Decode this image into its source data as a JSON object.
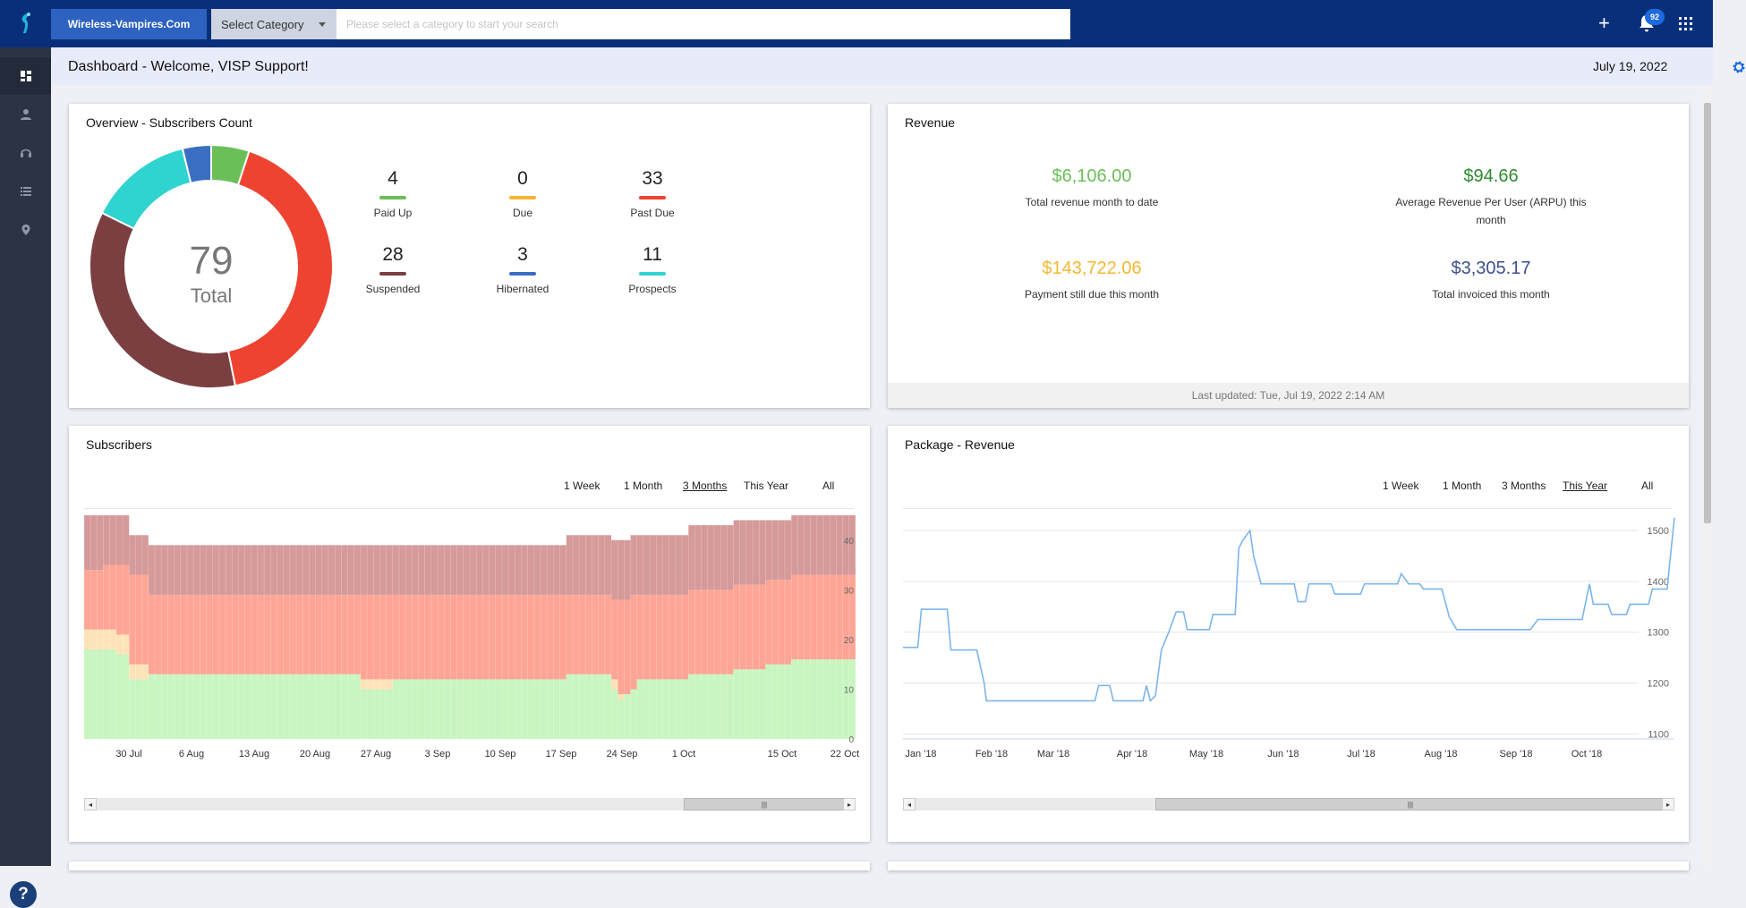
{
  "topbar": {
    "org_button": "Wireless-Vampires.Com",
    "category_select": "Select Category",
    "search_placeholder": "Please select a category to start your search",
    "notification_count": "92"
  },
  "sidebar": {
    "items": [
      {
        "icon": "dashboard-icon",
        "active": true
      },
      {
        "icon": "person-icon",
        "active": false
      },
      {
        "icon": "headset-icon",
        "active": false
      },
      {
        "icon": "list-icon",
        "active": false
      },
      {
        "icon": "location-pin-icon",
        "active": false
      }
    ],
    "help": "?"
  },
  "header": {
    "title": "Dashboard - Welcome, VISP Support!",
    "date": "July 19, 2022"
  },
  "overview": {
    "title": "Overview - Subscribers Count",
    "total_value": "79",
    "total_label": "Total",
    "stats": [
      {
        "value": "4",
        "label": "Paid Up",
        "color": "#6bbf59"
      },
      {
        "value": "0",
        "label": "Due",
        "color": "#f5b731"
      },
      {
        "value": "33",
        "label": "Past Due",
        "color": "#ef4332"
      },
      {
        "value": "28",
        "label": "Suspended",
        "color": "#7b3f42"
      },
      {
        "value": "3",
        "label": "Hibernated",
        "color": "#3a6ec2"
      },
      {
        "value": "11",
        "label": "Prospects",
        "color": "#2fd3d0"
      }
    ]
  },
  "revenue": {
    "title": "Revenue",
    "items": [
      {
        "value": "$6,106.00",
        "label": "Total revenue month to date",
        "color": "#6bbf59"
      },
      {
        "value": "$94.66",
        "label": "Average Revenue Per User (ARPU) this month",
        "color": "#2e8b2e"
      },
      {
        "value": "$143,722.06",
        "label": "Payment still due this month",
        "color": "#f5b731"
      },
      {
        "value": "$3,305.17",
        "label": "Total invoiced this month",
        "color": "#3c4f8f"
      }
    ],
    "footer": "Last updated: Tue, Jul 19, 2022 2:14 AM"
  },
  "subscribers": {
    "title": "Subscribers",
    "ranges": [
      "1 Week",
      "1 Month",
      "3 Months",
      "This Year",
      "All"
    ],
    "selected_range": "3 Months"
  },
  "package": {
    "title": "Package - Revenue",
    "ranges": [
      "1 Week",
      "1 Month",
      "3 Months",
      "This Year",
      "All"
    ],
    "selected_range": "This Year"
  },
  "chart_data": [
    {
      "type": "pie",
      "title": "Overview - Subscribers Count",
      "categories": [
        "Paid Up",
        "Due",
        "Past Due",
        "Suspended",
        "Prospects",
        "Hibernated"
      ],
      "values": [
        4,
        0,
        33,
        28,
        11,
        3
      ],
      "colors": [
        "#6bbf59",
        "#f5b731",
        "#ef4332",
        "#7b3f42",
        "#2fd3d0",
        "#3a6ec2"
      ]
    },
    {
      "type": "area",
      "title": "Subscribers",
      "stacked": true,
      "x_ticks": [
        "30 Jul",
        "6 Aug",
        "13 Aug",
        "20 Aug",
        "27 Aug",
        "3 Sep",
        "10 Sep",
        "17 Sep",
        "24 Sep",
        "1 Oct",
        "15 Oct",
        "22 Oct"
      ],
      "y_ticks": [
        "0",
        "10",
        "20",
        "30",
        "40"
      ],
      "ylim": [
        0,
        45
      ],
      "series": [
        {
          "color": "#c8f5c0",
          "values": [
            18,
            18,
            18,
            18,
            18,
            17,
            17,
            12,
            12,
            12,
            13,
            13,
            13,
            13,
            13,
            13,
            13,
            13,
            13,
            13,
            13,
            13,
            13,
            13,
            13,
            13,
            13,
            13,
            13,
            13,
            13,
            13,
            13,
            13,
            13,
            13,
            13,
            13,
            13,
            13,
            13,
            13,
            13,
            10,
            10,
            10,
            10,
            10,
            12,
            12,
            12,
            12,
            12,
            12,
            12,
            12,
            12,
            12,
            12,
            12,
            12,
            12,
            12,
            12,
            12,
            12,
            12,
            12,
            12,
            12,
            12,
            12,
            12,
            12,
            12,
            13,
            13,
            13,
            13,
            13,
            13,
            13,
            10,
            8,
            9,
            10,
            12,
            12,
            12,
            12,
            12,
            12,
            12,
            12,
            13,
            13,
            13,
            13,
            13,
            13,
            13,
            14,
            14,
            14,
            14,
            14,
            15,
            15,
            15,
            15,
            16,
            16,
            16,
            16,
            16,
            16,
            16,
            16,
            16,
            16,
            16
          ]
        },
        {
          "color": "#fde3b8",
          "values": [
            4,
            4,
            4,
            4,
            4,
            4,
            4,
            3,
            3,
            3,
            0,
            0,
            0,
            0,
            0,
            0,
            0,
            0,
            0,
            0,
            0,
            0,
            0,
            0,
            0,
            0,
            0,
            0,
            0,
            0,
            0,
            0,
            0,
            0,
            0,
            0,
            0,
            0,
            0,
            0,
            0,
            0,
            0,
            2,
            2,
            2,
            2,
            2,
            0,
            0,
            0,
            0,
            0,
            0,
            0,
            0,
            0,
            0,
            0,
            0,
            0,
            0,
            0,
            0,
            0,
            0,
            0,
            0,
            0,
            0,
            0,
            0,
            0,
            0,
            0,
            0,
            0,
            0,
            0,
            0,
            0,
            0,
            2,
            1,
            0,
            0,
            0,
            0,
            0,
            0,
            0,
            0,
            0,
            0,
            0,
            0,
            0,
            0,
            0,
            0,
            0,
            0,
            0,
            0,
            0,
            0,
            0,
            0,
            0,
            0,
            0,
            0,
            0,
            0,
            0,
            0,
            0,
            0,
            0,
            0,
            2
          ]
        },
        {
          "color": "#ffa595",
          "values": [
            12,
            12,
            12,
            13,
            13,
            14,
            14,
            18,
            18,
            18,
            16,
            16,
            16,
            16,
            16,
            16,
            16,
            16,
            16,
            16,
            16,
            16,
            16,
            16,
            16,
            16,
            16,
            16,
            16,
            16,
            16,
            16,
            16,
            16,
            16,
            16,
            16,
            16,
            16,
            16,
            16,
            16,
            16,
            17,
            17,
            17,
            17,
            17,
            17,
            17,
            17,
            17,
            17,
            17,
            17,
            17,
            17,
            17,
            17,
            17,
            17,
            17,
            17,
            17,
            17,
            17,
            17,
            17,
            17,
            17,
            17,
            17,
            17,
            17,
            17,
            16,
            16,
            16,
            16,
            16,
            16,
            16,
            16,
            19,
            19,
            19,
            17,
            17,
            17,
            17,
            17,
            17,
            17,
            17,
            17,
            17,
            17,
            17,
            17,
            17,
            17,
            17,
            17,
            17,
            17,
            17,
            17,
            17,
            17,
            17,
            17,
            17,
            17,
            17,
            17,
            17,
            17,
            17,
            17,
            17,
            16
          ]
        },
        {
          "color": "#d59a99",
          "values": [
            11,
            11,
            11,
            10,
            10,
            10,
            10,
            8,
            8,
            8,
            10,
            10,
            10,
            10,
            10,
            10,
            10,
            10,
            10,
            10,
            10,
            10,
            10,
            10,
            10,
            10,
            10,
            10,
            10,
            10,
            10,
            10,
            10,
            10,
            10,
            10,
            10,
            10,
            10,
            10,
            10,
            10,
            10,
            10,
            10,
            10,
            10,
            10,
            10,
            10,
            10,
            10,
            10,
            10,
            10,
            10,
            10,
            10,
            10,
            10,
            10,
            10,
            10,
            10,
            10,
            10,
            10,
            10,
            10,
            10,
            10,
            10,
            10,
            10,
            10,
            12,
            12,
            12,
            12,
            12,
            12,
            12,
            12,
            12,
            12,
            12,
            12,
            12,
            12,
            12,
            12,
            12,
            12,
            12,
            13,
            13,
            13,
            13,
            13,
            13,
            13,
            13,
            13,
            13,
            13,
            13,
            12,
            12,
            12,
            12,
            12,
            12,
            12,
            12,
            12,
            12,
            12,
            12,
            12,
            12,
            11
          ]
        }
      ]
    },
    {
      "type": "line",
      "title": "Package - Revenue",
      "x_ticks": [
        "Jan '18",
        "Feb '18",
        "Mar '18",
        "Apr '18",
        "May '18",
        "Jun '18",
        "Jul '18",
        "Aug '18",
        "Sep '18",
        "Oct '18"
      ],
      "y_ticks": [
        "1100",
        "1200",
        "1300",
        "1400",
        "1500"
      ],
      "ylim": [
        1090,
        1530
      ],
      "series": [
        {
          "color": "#7cb5ec",
          "points": [
            [
              0,
              1270
            ],
            [
              0.2,
              1270
            ],
            [
              0.25,
              1345
            ],
            [
              0.6,
              1345
            ],
            [
              0.65,
              1265
            ],
            [
              1.0,
              1265
            ],
            [
              1.1,
              1200
            ],
            [
              1.13,
              1165
            ],
            [
              2.0,
              1165
            ],
            [
              2.6,
              1165
            ],
            [
              2.65,
              1195
            ],
            [
              2.8,
              1195
            ],
            [
              2.85,
              1165
            ],
            [
              3.25,
              1165
            ],
            [
              3.3,
              1195
            ],
            [
              3.35,
              1165
            ],
            [
              3.42,
              1175
            ],
            [
              3.5,
              1265
            ],
            [
              3.6,
              1300
            ],
            [
              3.7,
              1340
            ],
            [
              3.8,
              1340
            ],
            [
              3.85,
              1305
            ],
            [
              4.15,
              1305
            ],
            [
              4.2,
              1335
            ],
            [
              4.5,
              1335
            ],
            [
              4.55,
              1465
            ],
            [
              4.6,
              1480
            ],
            [
              4.7,
              1500
            ],
            [
              4.75,
              1450
            ],
            [
              4.85,
              1395
            ],
            [
              5.1,
              1395
            ],
            [
              5.3,
              1395
            ],
            [
              5.35,
              1360
            ],
            [
              5.45,
              1360
            ],
            [
              5.5,
              1395
            ],
            [
              5.8,
              1395
            ],
            [
              5.85,
              1375
            ],
            [
              6.2,
              1375
            ],
            [
              6.25,
              1395
            ],
            [
              6.7,
              1395
            ],
            [
              6.75,
              1415
            ],
            [
              6.85,
              1395
            ],
            [
              7.0,
              1395
            ],
            [
              7.05,
              1385
            ],
            [
              7.3,
              1385
            ],
            [
              7.4,
              1330
            ],
            [
              7.5,
              1305
            ],
            [
              8.5,
              1305
            ],
            [
              8.6,
              1325
            ],
            [
              9.2,
              1325
            ],
            [
              9.3,
              1395
            ],
            [
              9.35,
              1355
            ],
            [
              9.55,
              1355
            ],
            [
              9.6,
              1335
            ],
            [
              9.8,
              1335
            ],
            [
              9.85,
              1355
            ],
            [
              10.1,
              1355
            ],
            [
              10.15,
              1385
            ],
            [
              10.35,
              1385
            ],
            [
              10.45,
              1525
            ]
          ]
        }
      ]
    }
  ]
}
